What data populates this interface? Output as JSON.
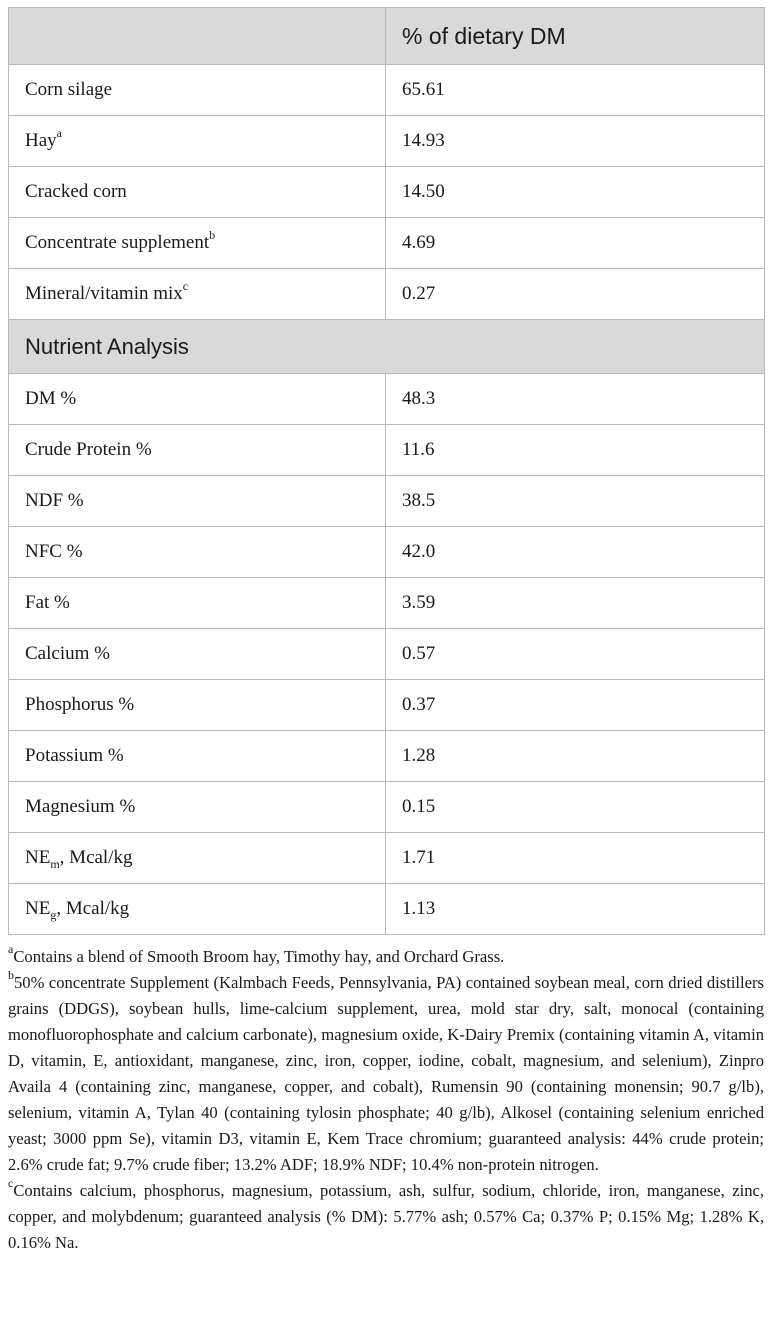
{
  "header": {
    "blank": "",
    "col2": "% of dietary DM"
  },
  "ingredients": [
    {
      "name": "Corn silage",
      "sup": "",
      "value": "65.61"
    },
    {
      "name": "Hay",
      "sup": "a",
      "value": "14.93"
    },
    {
      "name": "Cracked corn",
      "sup": "",
      "value": "14.50"
    },
    {
      "name": "Concentrate supplement",
      "sup": "b",
      "value": "4.69"
    },
    {
      "name": "Mineral/vitamin mix",
      "sup": "c",
      "value": "0.27"
    }
  ],
  "section_title": "Nutrient Analysis",
  "nutrients": [
    {
      "name": "DM %",
      "value": "48.3"
    },
    {
      "name": "Crude Protein %",
      "value": "11.6"
    },
    {
      "name": "NDF %",
      "value": "38.5"
    },
    {
      "name": "NFC %",
      "value": "42.0"
    },
    {
      "name": "Fat %",
      "value": "3.59"
    },
    {
      "name": "Calcium %",
      "value": "0.57"
    },
    {
      "name": "Phosphorus %",
      "value": "0.37"
    },
    {
      "name": "Potassium %",
      "value": "1.28"
    },
    {
      "name": "Magnesium %",
      "value": "0.15"
    },
    {
      "name_main": "NE",
      "name_sub": "m",
      "name_rest": ", Mcal/kg",
      "value": "1.71"
    },
    {
      "name_main": "NE",
      "name_sub": "g",
      "name_rest": ", Mcal/kg",
      "value": "1.13"
    }
  ],
  "footnotes": [
    {
      "mark": "a",
      "text": "Contains a blend of Smooth Broom hay, Timothy hay, and Orchard Grass."
    },
    {
      "mark": "b",
      "text": "50% concentrate Supplement (Kalmbach Feeds, Pennsylvania, PA) contained soybean meal, corn dried distillers grains (DDGS), soybean hulls, lime-calcium supplement, urea, mold star dry, salt, monocal (containing monofluorophosphate and calcium carbonate), magnesium oxide, K-Dairy Premix (containing vitamin A, vitamin D, vitamin, E, antioxidant, manganese, zinc, iron, copper, iodine, cobalt, magnesium, and selenium), Zinpro Availa 4 (containing zinc, manganese, copper, and cobalt), Rumensin 90 (containing monensin; 90.7 g/lb), selenium, vitamin A, Tylan 40 (containing tylosin phosphate; 40 g/lb), Alkosel (containing selenium enriched yeast; 3000 ppm Se), vitamin D3, vitamin E, Kem Trace chromium; guaranteed analysis: 44% crude protein; 2.6% crude fat; 9.7% crude fiber; 13.2% ADF; 18.9% NDF; 10.4% non-protein nitrogen."
    },
    {
      "mark": "c",
      "text": "Contains calcium, phosphorus, magnesium, potassium, ash, sulfur, sodium, chloride, iron, manganese, zinc, copper, and molybdenum; guaranteed analysis (% DM): 5.77% ash; 0.57% Ca; 0.37% P; 0.15% Mg; 1.28% K, 0.16% Na."
    }
  ]
}
